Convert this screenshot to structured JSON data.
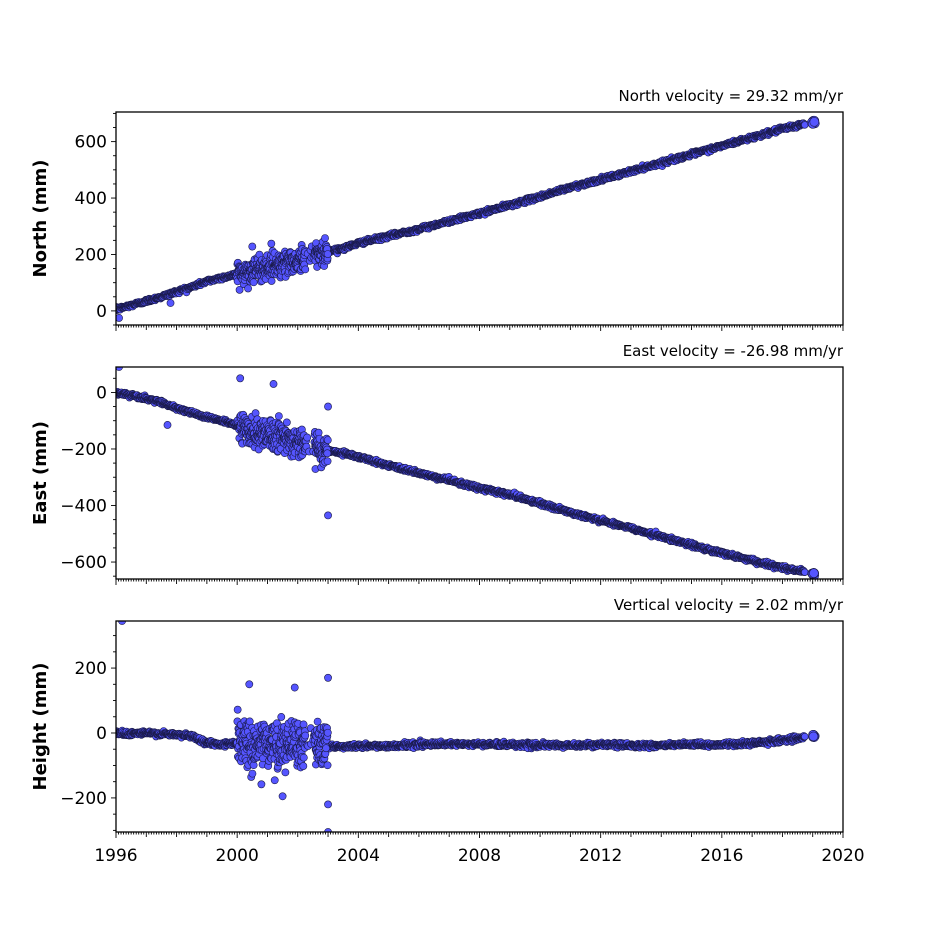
{
  "chart_data": [
    {
      "type": "scatter",
      "ylabel": "North (mm)",
      "annotation": "North velocity = 29.32 mm/yr",
      "velocity_mm_per_yr": 29.32,
      "xlim": [
        1996,
        2020
      ],
      "ylim": [
        -50,
        705
      ],
      "yticks": [
        0,
        200,
        400,
        600
      ],
      "ytick_labels": [
        "0",
        "200",
        "400",
        "600"
      ],
      "grid": false,
      "marker_color": "#5555ff",
      "marker_edge_color": "#1a1a4a",
      "series": [
        {
          "x": [
            1996.0,
            1996.5,
            1997.0,
            1997.5,
            1998.0,
            1998.5,
            1999.0,
            1999.5,
            2000.0,
            2000.5,
            2001.0,
            2001.5,
            2002.0,
            2002.5,
            2003.0,
            2003.5,
            2004.0,
            2005.0,
            2006.0,
            2007.0,
            2008.0,
            2009.0,
            2010.0,
            2011.0,
            2012.0,
            2013.0,
            2014.0,
            2015.0,
            2016.0,
            2017.0,
            2018.0,
            2018.7,
            2019.0
          ],
          "y": [
            5,
            20,
            35,
            50,
            68,
            85,
            105,
            118,
            130,
            142,
            158,
            170,
            180,
            195,
            212,
            222,
            240,
            265,
            290,
            318,
            345,
            375,
            405,
            438,
            465,
            495,
            525,
            555,
            585,
            615,
            645,
            662,
            670
          ]
        }
      ],
      "scatter_periods": [
        {
          "x_range": [
            2000.0,
            2003.0
          ],
          "y_spread": 50
        }
      ],
      "outliers": [
        {
          "x": 1996.1,
          "y": -25
        },
        {
          "x": 1997.8,
          "y": 28
        },
        {
          "x": 2000.5,
          "y": 228
        },
        {
          "x": 2002.9,
          "y": 258
        }
      ]
    },
    {
      "type": "scatter",
      "ylabel": "East (mm)",
      "annotation": "East velocity = -26.98 mm/yr",
      "velocity_mm_per_yr": -26.98,
      "xlim": [
        1996,
        2020
      ],
      "ylim": [
        -660,
        90
      ],
      "yticks": [
        0,
        -200,
        -400,
        -600
      ],
      "ytick_labels": [
        "0",
        "−200",
        "−400",
        "−600"
      ],
      "grid": false,
      "marker_color": "#5555ff",
      "marker_edge_color": "#1a1a4a",
      "series": [
        {
          "x": [
            1996.0,
            1996.5,
            1997.0,
            1997.5,
            1998.0,
            1998.5,
            1999.0,
            1999.5,
            2000.0,
            2000.5,
            2001.0,
            2001.5,
            2002.0,
            2002.5,
            2003.0,
            2003.5,
            2004.0,
            2005.0,
            2006.0,
            2007.0,
            2008.0,
            2009.0,
            2010.0,
            2011.0,
            2012.0,
            2013.0,
            2014.0,
            2015.0,
            2016.0,
            2017.0,
            2018.0,
            2018.7,
            2019.0
          ],
          "y": [
            0,
            -10,
            -22,
            -35,
            -55,
            -72,
            -88,
            -100,
            -118,
            -135,
            -150,
            -162,
            -175,
            -190,
            -205,
            -215,
            -228,
            -258,
            -285,
            -312,
            -338,
            -362,
            -392,
            -425,
            -452,
            -480,
            -510,
            -540,
            -568,
            -595,
            -620,
            -635,
            -642
          ]
        }
      ],
      "scatter_periods": [
        {
          "x_range": [
            2000.0,
            2003.0
          ],
          "y_spread": 60
        }
      ],
      "outliers": [
        {
          "x": 1996.1,
          "y": 90
        },
        {
          "x": 1997.7,
          "y": -115
        },
        {
          "x": 2000.1,
          "y": 50
        },
        {
          "x": 2001.2,
          "y": 30
        },
        {
          "x": 2003.0,
          "y": -50
        },
        {
          "x": 2003.0,
          "y": -435
        }
      ]
    },
    {
      "type": "scatter",
      "ylabel": "Height (mm)",
      "annotation": "Vertical velocity = 2.02 mm/yr",
      "velocity_mm_per_yr": 2.02,
      "xlim": [
        1996,
        2020
      ],
      "xticks": [
        1996,
        2000,
        2004,
        2008,
        2012,
        2016,
        2020
      ],
      "xtick_labels": [
        "1996",
        "2000",
        "2004",
        "2008",
        "2012",
        "2016",
        "2020"
      ],
      "ylim": [
        -305,
        345
      ],
      "yticks": [
        200,
        0,
        -200
      ],
      "ytick_labels": [
        "200",
        "0",
        "−200"
      ],
      "grid": false,
      "marker_color": "#5555ff",
      "marker_edge_color": "#1a1a4a",
      "series": [
        {
          "x": [
            1996.0,
            1996.5,
            1997.0,
            1997.5,
            1998.0,
            1998.5,
            1999.0,
            1999.5,
            2000.0,
            2000.5,
            2001.0,
            2001.5,
            2002.0,
            2002.5,
            2003.0,
            2003.5,
            2004.0,
            2005.0,
            2006.0,
            2007.0,
            2008.0,
            2009.0,
            2010.0,
            2011.0,
            2012.0,
            2013.0,
            2014.0,
            2015.0,
            2016.0,
            2017.0,
            2018.0,
            2018.7,
            2019.0
          ],
          "y": [
            0,
            -2,
            0,
            -3,
            -5,
            -10,
            -30,
            -35,
            -30,
            -35,
            -35,
            -40,
            -40,
            -40,
            -40,
            -42,
            -40,
            -40,
            -35,
            -35,
            -35,
            -35,
            -38,
            -38,
            -36,
            -38,
            -38,
            -36,
            -36,
            -32,
            -22,
            -15,
            -10
          ]
        }
      ],
      "scatter_periods": [
        {
          "x_range": [
            2000.0,
            2003.0
          ],
          "y_spread": 80
        }
      ],
      "outliers": [
        {
          "x": 1996.2,
          "y": 345
        },
        {
          "x": 2000.4,
          "y": 150
        },
        {
          "x": 2001.9,
          "y": 140
        },
        {
          "x": 2003.0,
          "y": 170
        },
        {
          "x": 2003.0,
          "y": -220
        },
        {
          "x": 2003.0,
          "y": -305
        },
        {
          "x": 2001.5,
          "y": -195
        }
      ]
    }
  ]
}
